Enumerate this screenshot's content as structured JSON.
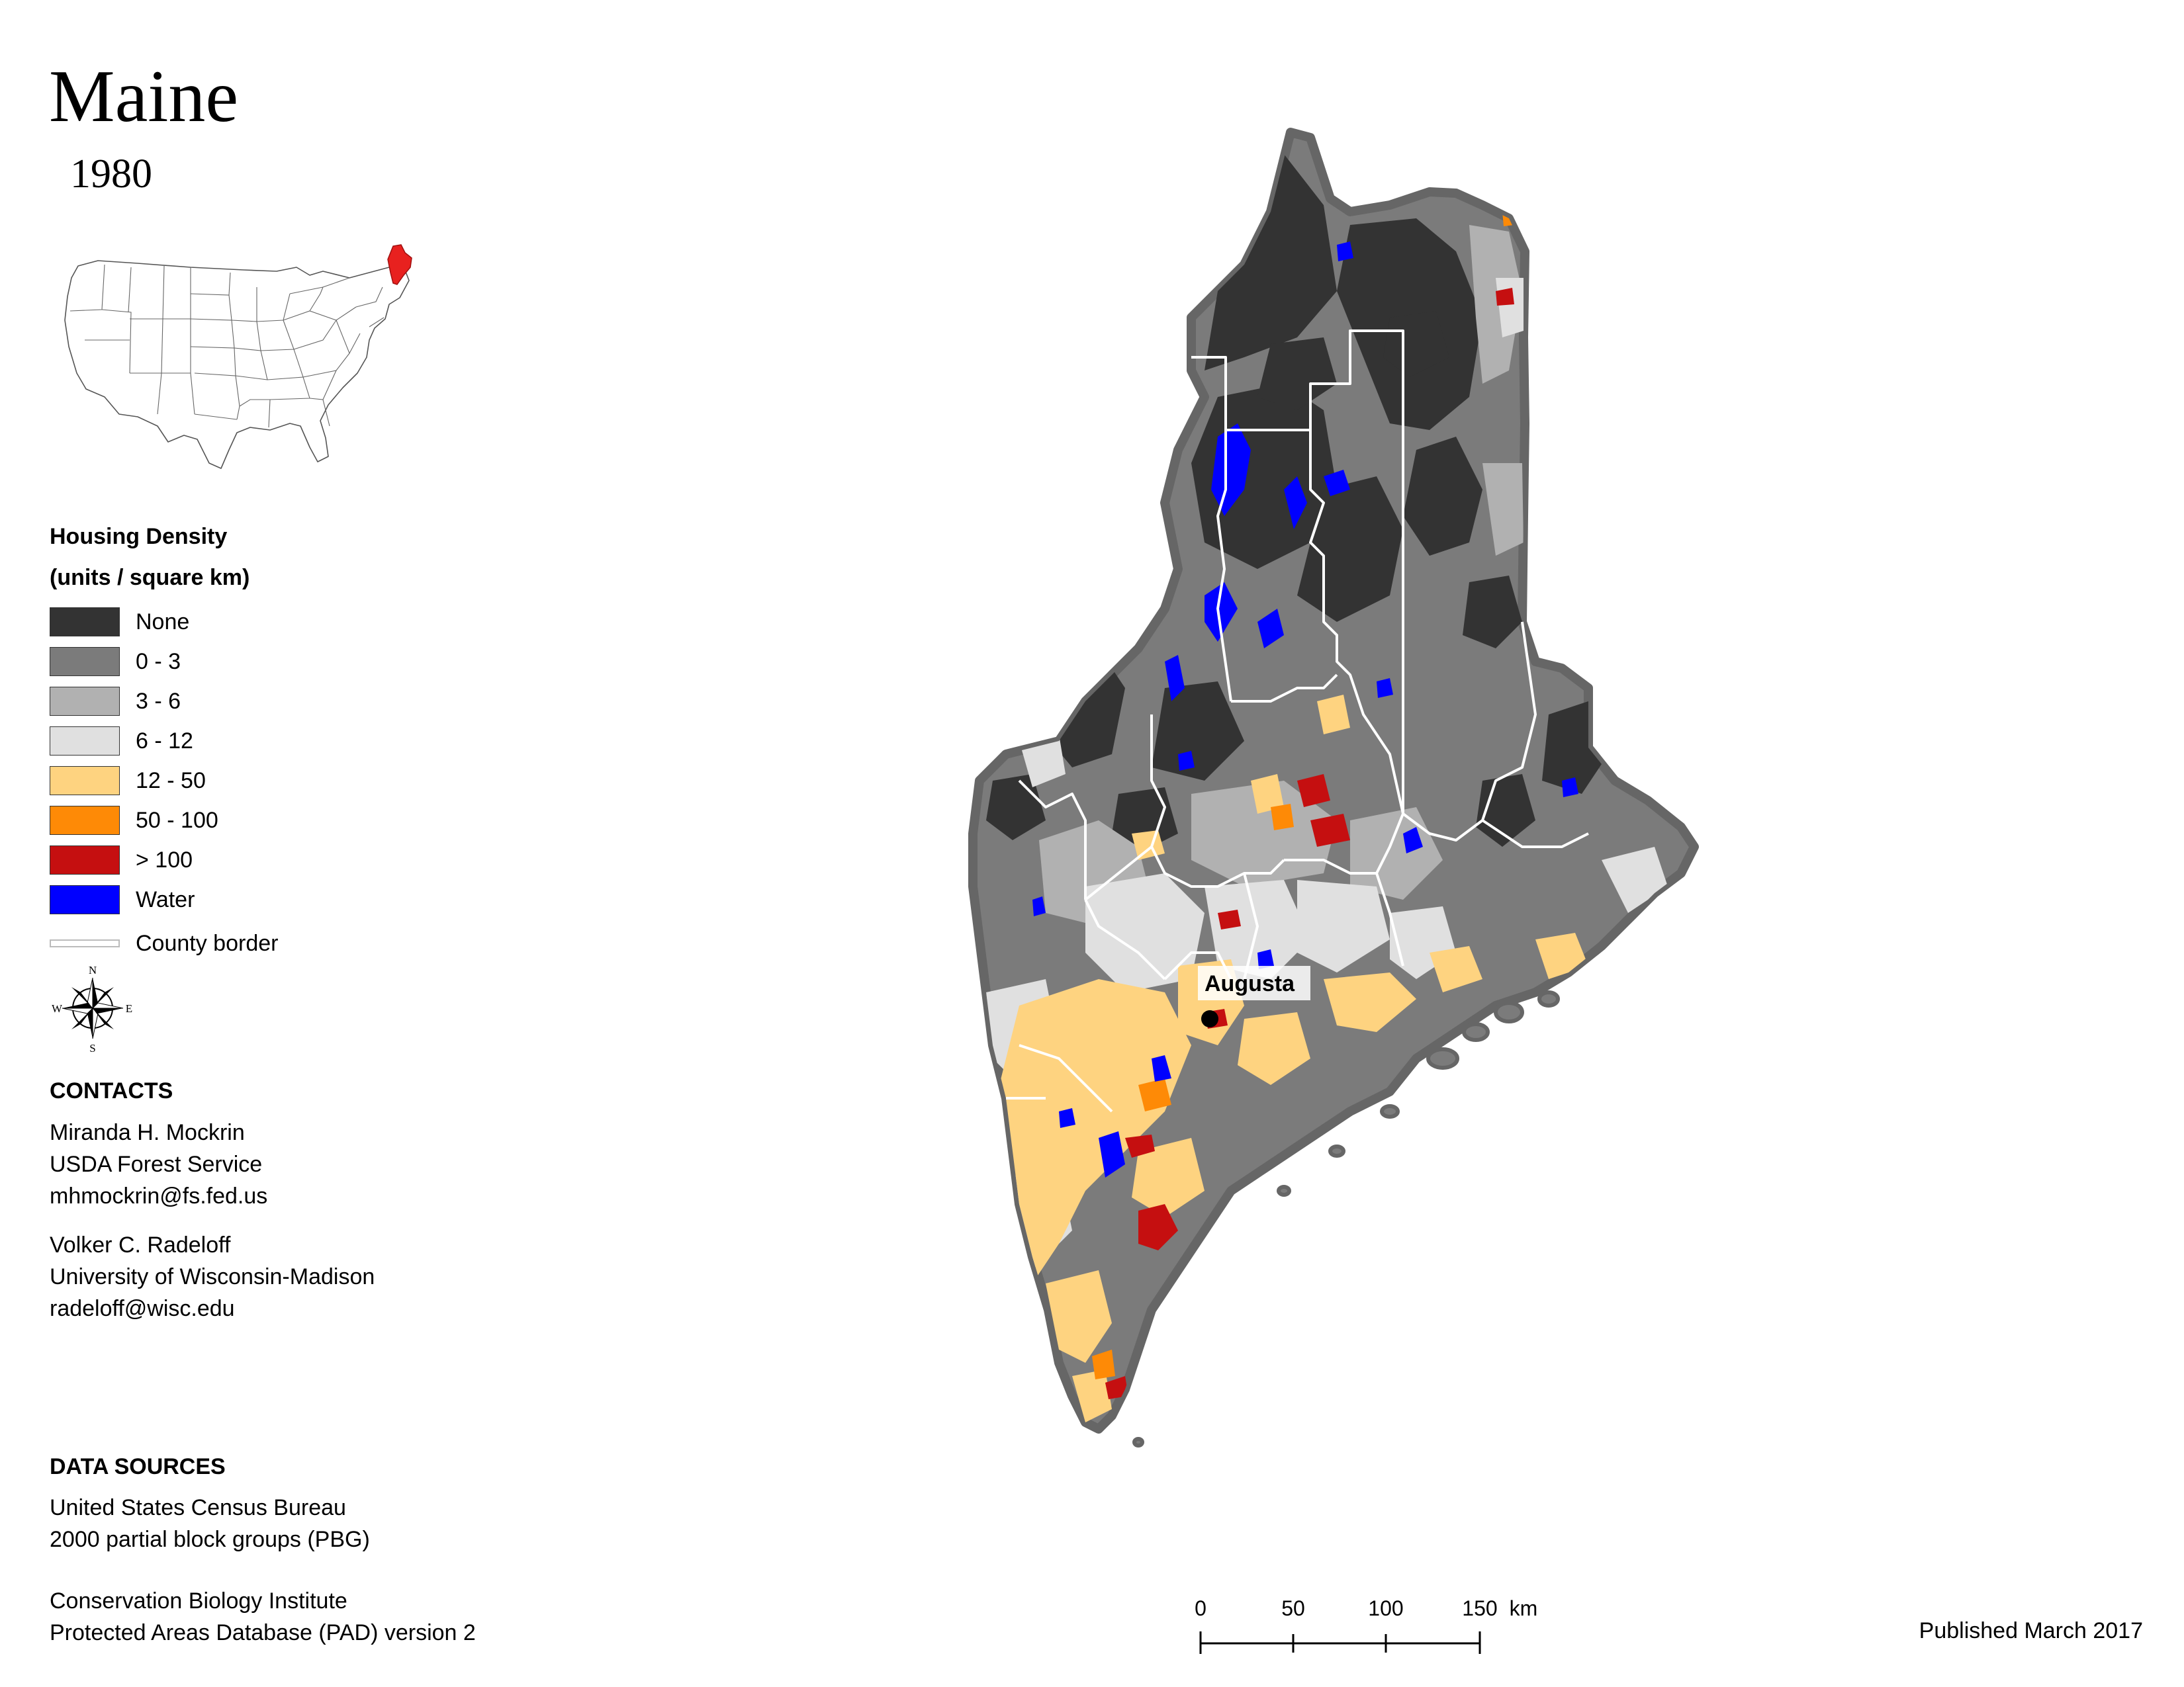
{
  "title": "Maine",
  "year": "1980",
  "locator_map": {
    "highlight": "Maine",
    "highlight_color": "#e8211f"
  },
  "legend": {
    "title_line1": "Housing Density",
    "title_line2": "(units / square km)",
    "items": [
      {
        "label": "None",
        "color": "#333333"
      },
      {
        "label": "0 - 3",
        "color": "#7b7b7b"
      },
      {
        "label": "3 - 6",
        "color": "#b1b1b1"
      },
      {
        "label": "6 - 12",
        "color": "#e0e0e0"
      },
      {
        "label": "12 - 50",
        "color": "#fed380"
      },
      {
        "label": "50 - 100",
        "color": "#fe8a06"
      },
      {
        "label": "> 100",
        "color": "#c50f10"
      },
      {
        "label": "Water",
        "color": "#0000ff"
      }
    ],
    "county_border_label": "County border"
  },
  "compass": {
    "n": "N",
    "s": "S",
    "e": "E",
    "w": "W"
  },
  "contacts": {
    "heading": "CONTACTS",
    "person1": {
      "name": "Miranda H. Mockrin",
      "org": "USDA Forest Service",
      "email": "mhmockrin@fs.fed.us"
    },
    "person2": {
      "name": "Volker C. Radeloff",
      "org": "University of Wisconsin-Madison",
      "email": "radeloff@wisc.edu"
    }
  },
  "data_sources": {
    "heading": "DATA SOURCES",
    "source1_line1": "United States Census Bureau",
    "source1_line2": "2000 partial block groups (PBG)",
    "source2_line1": "Conservation Biology Institute",
    "source2_line2": "Protected Areas Database (PAD) version 2"
  },
  "map": {
    "city_label": "Augusta"
  },
  "scale_bar": {
    "ticks": [
      "0",
      "50",
      "100",
      "150"
    ],
    "unit": "km"
  },
  "published": "Published March 2017"
}
